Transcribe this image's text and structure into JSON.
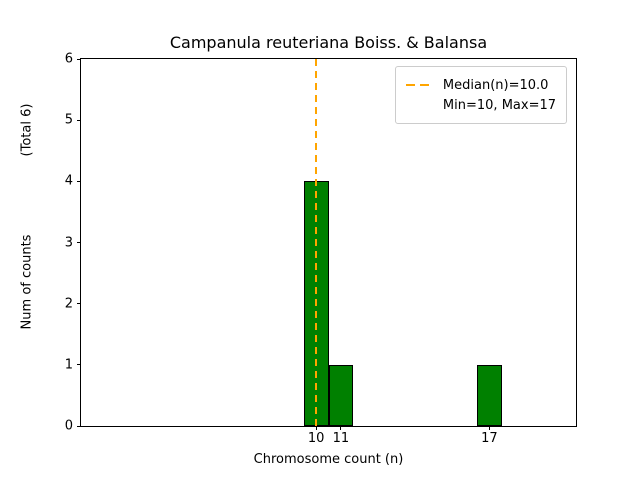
{
  "figure": {
    "background": "#ffffff"
  },
  "chart_data": {
    "type": "bar",
    "title": "Campanula reuteriana Boiss. & Balansa",
    "xlabel": "Chromosome count (n)",
    "ylabel": "Num of counts",
    "ylabel_annotation": "(Total 6)",
    "x": [
      10,
      11,
      17
    ],
    "values": [
      4,
      1,
      1
    ],
    "bar_width": 1,
    "bar_color": "#008000",
    "bar_edge_color": "#000000",
    "xlim": [
      0.5,
      20.5
    ],
    "ylim": [
      0,
      6
    ],
    "xticks": [
      10,
      11,
      17
    ],
    "yticks": [
      0,
      1,
      2,
      3,
      4,
      5,
      6
    ],
    "median_x": 10.0,
    "median_line_color": "#FFA500",
    "grid": false,
    "legend": {
      "position": "upper right",
      "entries": [
        {
          "label": "Median(n)=10.0",
          "handle": "dashed-line"
        },
        {
          "label": "Min=10, Max=17",
          "handle": "none"
        }
      ]
    }
  }
}
